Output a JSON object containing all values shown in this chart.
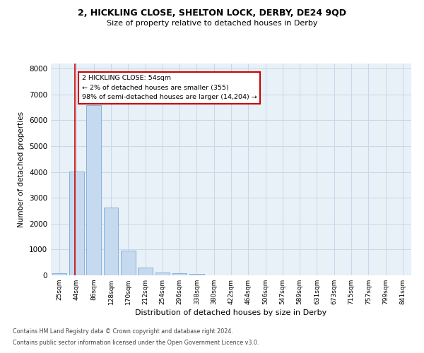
{
  "title_line1": "2, HICKLING CLOSE, SHELTON LOCK, DERBY, DE24 9QD",
  "title_line2": "Size of property relative to detached houses in Derby",
  "xlabel": "Distribution of detached houses by size in Derby",
  "ylabel": "Number of detached properties",
  "bar_labels": [
    "25sqm",
    "44sqm",
    "86sqm",
    "128sqm",
    "170sqm",
    "212sqm",
    "254sqm",
    "296sqm",
    "338sqm",
    "380sqm",
    "422sqm",
    "464sqm",
    "506sqm",
    "547sqm",
    "589sqm",
    "631sqm",
    "673sqm",
    "715sqm",
    "757sqm",
    "799sqm",
    "841sqm"
  ],
  "bar_values": [
    80,
    4020,
    6580,
    2620,
    960,
    300,
    110,
    80,
    60,
    0,
    0,
    0,
    0,
    0,
    0,
    0,
    0,
    0,
    0,
    0,
    0
  ],
  "bar_color": "#c5d9ef",
  "bar_edge_color": "#7aaad0",
  "vline_color": "#cc0000",
  "vline_x": 0.92,
  "annotation_text": "2 HICKLING CLOSE: 54sqm\n← 2% of detached houses are smaller (355)\n98% of semi-detached houses are larger (14,204) →",
  "annotation_box_color": "#ffffff",
  "annotation_box_edge": "#cc0000",
  "ylim": [
    0,
    8200
  ],
  "yticks": [
    0,
    1000,
    2000,
    3000,
    4000,
    5000,
    6000,
    7000,
    8000
  ],
  "grid_color": "#c8d8e8",
  "background_color": "#e8f0f8",
  "footer_line1": "Contains HM Land Registry data © Crown copyright and database right 2024.",
  "footer_line2": "Contains public sector information licensed under the Open Government Licence v3.0."
}
